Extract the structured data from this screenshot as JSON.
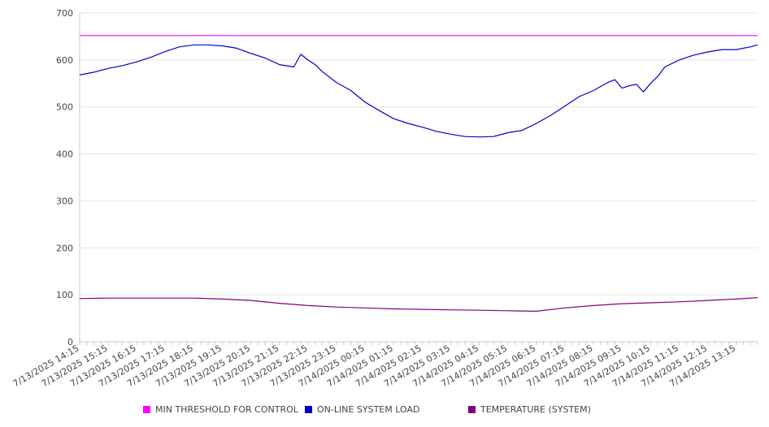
{
  "chart_data": {
    "type": "line",
    "title": "",
    "xlabel": "",
    "ylabel": "",
    "ylim": [
      0,
      700
    ],
    "y_ticks": [
      0,
      100,
      200,
      300,
      400,
      500,
      600,
      700
    ],
    "x_tick_labels": [
      "7/13/2025 14:15",
      "7/13/2025 15:15",
      "7/13/2025 16:15",
      "7/13/2025 17:15",
      "7/13/2025 18:15",
      "7/13/2025 19:15",
      "7/13/2025 20:15",
      "7/13/2025 21:15",
      "7/13/2025 22:15",
      "7/13/2025 23:15",
      "7/14/2025 00:15",
      "7/14/2025 01:15",
      "7/14/2025 02:15",
      "7/14/2025 03:15",
      "7/14/2025 04:15",
      "7/14/2025 05:15",
      "7/14/2025 06:15",
      "7/14/2025 07:15",
      "7/14/2025 08:15",
      "7/14/2025 09:15",
      "7/14/2025 10:15",
      "7/14/2025 11:15",
      "7/14/2025 12:15",
      "7/14/2025 13:15"
    ],
    "x_hours_start": "7/13/2025 14:15",
    "grid": "horizontal",
    "legend_position": "bottom",
    "series": [
      {
        "name": "MIN THRESHOLD FOR CONTROL",
        "color": "#ff00ff",
        "x": [
          "7/13/2025 14:15",
          "7/14/2025 14:00"
        ],
        "values": [
          652,
          652
        ]
      },
      {
        "name": "ON-LINE SYSTEM LOAD",
        "color": "#0000cc",
        "x": [
          "7/13/2025 14:15",
          "7/13/2025 14:45",
          "7/13/2025 15:15",
          "7/13/2025 15:45",
          "7/13/2025 16:15",
          "7/13/2025 16:45",
          "7/13/2025 17:15",
          "7/13/2025 17:45",
          "7/13/2025 18:15",
          "7/13/2025 18:45",
          "7/13/2025 19:15",
          "7/13/2025 19:45",
          "7/13/2025 20:15",
          "7/13/2025 20:45",
          "7/13/2025 21:15",
          "7/13/2025 21:45",
          "7/13/2025 22:00",
          "7/13/2025 22:15",
          "7/13/2025 22:30",
          "7/13/2025 22:45",
          "7/13/2025 23:15",
          "7/13/2025 23:45",
          "7/14/2025 00:15",
          "7/14/2025 00:45",
          "7/14/2025 01:15",
          "7/14/2025 01:45",
          "7/14/2025 02:15",
          "7/14/2025 02:45",
          "7/14/2025 03:15",
          "7/14/2025 03:45",
          "7/14/2025 04:15",
          "7/14/2025 04:45",
          "7/14/2025 05:15",
          "7/14/2025 05:45",
          "7/14/2025 06:15",
          "7/14/2025 06:45",
          "7/14/2025 07:15",
          "7/14/2025 07:45",
          "7/14/2025 08:15",
          "7/14/2025 08:45",
          "7/14/2025 09:00",
          "7/14/2025 09:15",
          "7/14/2025 09:30",
          "7/14/2025 09:45",
          "7/14/2025 10:00",
          "7/14/2025 10:15",
          "7/14/2025 10:30",
          "7/14/2025 10:45",
          "7/14/2025 11:15",
          "7/14/2025 11:45",
          "7/14/2025 12:15",
          "7/14/2025 12:45",
          "7/14/2025 13:15",
          "7/14/2025 13:45",
          "7/14/2025 14:00"
        ],
        "values": [
          568,
          574,
          582,
          588,
          596,
          606,
          618,
          628,
          632,
          632,
          630,
          625,
          614,
          604,
          590,
          585,
          612,
          600,
          590,
          575,
          552,
          535,
          510,
          492,
          475,
          465,
          457,
          448,
          442,
          437,
          436,
          437,
          445,
          450,
          465,
          482,
          502,
          522,
          535,
          552,
          558,
          540,
          545,
          548,
          532,
          550,
          565,
          585,
          600,
          610,
          617,
          622,
          622,
          628,
          632
        ]
      },
      {
        "name": "TEMPERATURE (SYSTEM)",
        "color": "#800080",
        "x": [
          "7/13/2025 14:15",
          "7/13/2025 15:15",
          "7/13/2025 16:15",
          "7/13/2025 17:15",
          "7/13/2025 18:15",
          "7/13/2025 19:15",
          "7/13/2025 20:15",
          "7/13/2025 21:15",
          "7/13/2025 22:15",
          "7/13/2025 23:15",
          "7/14/2025 00:15",
          "7/14/2025 01:15",
          "7/14/2025 02:15",
          "7/14/2025 03:15",
          "7/14/2025 04:15",
          "7/14/2025 05:15",
          "7/14/2025 06:15",
          "7/14/2025 07:15",
          "7/14/2025 08:15",
          "7/14/2025 09:15",
          "7/14/2025 10:15",
          "7/14/2025 11:15",
          "7/14/2025 12:15",
          "7/14/2025 13:15",
          "7/14/2025 14:00"
        ],
        "values": [
          92,
          93,
          93,
          93,
          93,
          91,
          88,
          82,
          77,
          74,
          72,
          70,
          69,
          68,
          67,
          66,
          65,
          72,
          77,
          81,
          83,
          85,
          88,
          91,
          94
        ]
      }
    ]
  }
}
